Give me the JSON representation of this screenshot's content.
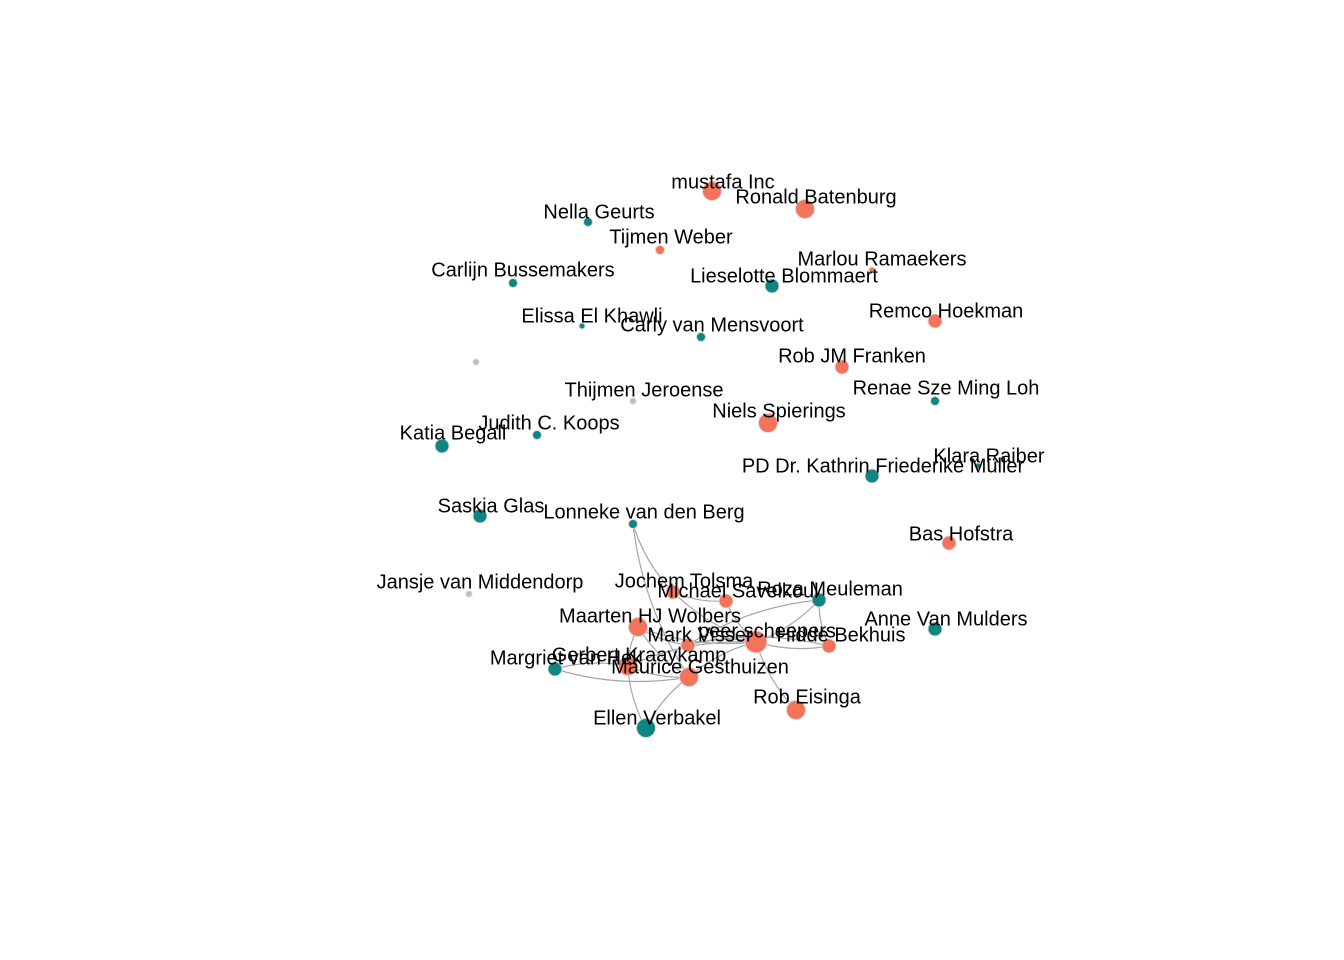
{
  "colors": {
    "group_a": "#f5735a",
    "group_b": "#0e8583",
    "isolate": "#bdbdbd",
    "edge": "#a6a6a6"
  },
  "nodes": [
    {
      "id": "mustafa",
      "label": "mustafa Inc",
      "group": "a",
      "size": 3
    },
    {
      "id": "batenburg",
      "label": "Ronald Batenburg",
      "group": "a",
      "size": 3
    },
    {
      "id": "geurts",
      "label": "Nella Geurts",
      "group": "b",
      "size": 1
    },
    {
      "id": "weber",
      "label": "Tijmen Weber",
      "group": "a",
      "size": 1
    },
    {
      "id": "bussemakers",
      "label": "Carlijn Bussemakers",
      "group": "b",
      "size": 1
    },
    {
      "id": "ramaekers",
      "label": "Marlou Ramaekers",
      "group": "a",
      "size": 0
    },
    {
      "id": "blommaert",
      "label": "Lieselotte Blommaert",
      "group": "b",
      "size": 2
    },
    {
      "id": "hoekman",
      "label": "Remco Hoekman",
      "group": "a",
      "size": 2
    },
    {
      "id": "khawli",
      "label": "Elissa El Khawli",
      "group": "b",
      "size": 0
    },
    {
      "id": "mensvoort",
      "label": "Carly van Mensvoort",
      "group": "b",
      "size": 1
    },
    {
      "id": "unlabeled",
      "label": "",
      "group": "iso",
      "size": 0
    },
    {
      "id": "franken",
      "label": "Rob JM Franken",
      "group": "a",
      "size": 2
    },
    {
      "id": "loh",
      "label": "Renae Sze Ming Loh",
      "group": "b",
      "size": 1
    },
    {
      "id": "jeroense",
      "label": "Thijmen Jeroense",
      "group": "iso",
      "size": 0
    },
    {
      "id": "spierings",
      "label": "Niels Spierings",
      "group": "a",
      "size": 3
    },
    {
      "id": "begall",
      "label": "Katia Begall",
      "group": "b",
      "size": 2
    },
    {
      "id": "koops",
      "label": "Judith C. Koops",
      "group": "b",
      "size": 1
    },
    {
      "id": "raiber",
      "label": "Klara Raiber",
      "group": "b",
      "size": 0
    },
    {
      "id": "muller",
      "label": "PD Dr. Kathrin Friederike Müller",
      "group": "b",
      "size": 2
    },
    {
      "id": "glas",
      "label": "Saskia Glas",
      "group": "b",
      "size": 2
    },
    {
      "id": "vandenberg",
      "label": "Lonneke van den Berg",
      "group": "b",
      "size": 1
    },
    {
      "id": "hofstra",
      "label": "Bas Hofstra",
      "group": "a",
      "size": 2
    },
    {
      "id": "middendorp",
      "label": "Jansje van Middendorp",
      "group": "iso",
      "size": 0
    },
    {
      "id": "tolsma",
      "label": "Jochem Tolsma",
      "group": "a",
      "size": 2
    },
    {
      "id": "savelkoul",
      "label": "Michael Savelkoul",
      "group": "a",
      "size": 2
    },
    {
      "id": "meuleman",
      "label": "Roza Meuleman",
      "group": "b",
      "size": 2
    },
    {
      "id": "wolbers",
      "label": "Maarten HJ Wolbers",
      "group": "a",
      "size": 3
    },
    {
      "id": "mulders",
      "label": "Anne Van Mulders",
      "group": "b",
      "size": 2
    },
    {
      "id": "scheepers",
      "label": "peer scheepers",
      "group": "a",
      "size": 4
    },
    {
      "id": "visser",
      "label": "Mark Visser",
      "group": "a",
      "size": 2
    },
    {
      "id": "bekhuis",
      "label": "Hidde Bekhuis",
      "group": "a",
      "size": 2
    },
    {
      "id": "kraaykamp",
      "label": "Gerbert Kraaykamp",
      "group": "a",
      "size": 3
    },
    {
      "id": "margriet",
      "label": "Margriet van Hek",
      "group": "b",
      "size": 2
    },
    {
      "id": "gesthuizen",
      "label": "Maurice Gesthuizen",
      "group": "a",
      "size": 3
    },
    {
      "id": "eisinga",
      "label": "Rob Eisinga",
      "group": "a",
      "size": 3
    },
    {
      "id": "verbakel",
      "label": "Ellen Verbakel",
      "group": "b",
      "size": 3
    }
  ],
  "edges": [
    [
      "vandenberg",
      "tolsma"
    ],
    [
      "vandenberg",
      "gesthuizen"
    ],
    [
      "tolsma",
      "savelkoul"
    ],
    [
      "tolsma",
      "scheepers"
    ],
    [
      "savelkoul",
      "scheepers"
    ],
    [
      "wolbers",
      "scheepers"
    ],
    [
      "wolbers",
      "kraaykamp"
    ],
    [
      "wolbers",
      "visser"
    ],
    [
      "wolbers",
      "gesthuizen"
    ],
    [
      "scheepers",
      "meuleman"
    ],
    [
      "scheepers",
      "bekhuis"
    ],
    [
      "scheepers",
      "visser"
    ],
    [
      "scheepers",
      "gesthuizen"
    ],
    [
      "scheepers",
      "eisinga"
    ],
    [
      "scheepers",
      "kraaykamp"
    ],
    [
      "meuleman",
      "bekhuis"
    ],
    [
      "meuleman",
      "visser"
    ],
    [
      "kraaykamp",
      "margriet"
    ],
    [
      "kraaykamp",
      "verbakel"
    ],
    [
      "kraaykamp",
      "gesthuizen"
    ],
    [
      "margriet",
      "gesthuizen"
    ],
    [
      "gesthuizen",
      "verbakel"
    ],
    [
      "gesthuizen",
      "visser"
    ],
    [
      "bekhuis",
      "visser"
    ]
  ]
}
